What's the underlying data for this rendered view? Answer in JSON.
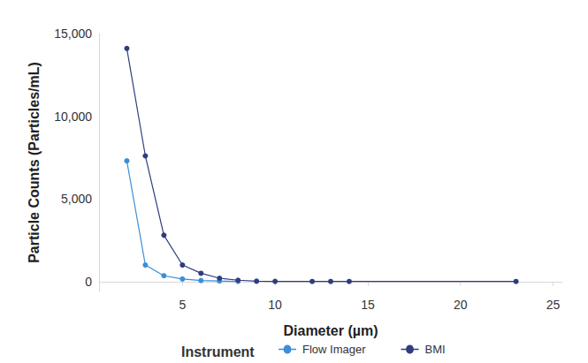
{
  "chart_data": {
    "type": "line",
    "x_label": "Diameter (µm)",
    "y_label": "Particle Counts (Particles/mL)",
    "legend_title": "Instrument",
    "legend": "bottom",
    "grid": false,
    "marker": "circle",
    "xlim": [
      0.5,
      25.5
    ],
    "xticks": [
      5,
      10,
      15,
      20,
      25
    ],
    "ylim": [
      -600,
      15000
    ],
    "yticks": [
      0,
      {
        "value": 5000,
        "label": "5,000"
      },
      {
        "value": 10000,
        "label": "10,000"
      },
      {
        "value": 15000,
        "label": "15,000"
      }
    ],
    "series": [
      {
        "name": "Flow Imager",
        "color": "#3a8fd8",
        "x": [
          2,
          3,
          4,
          5,
          6,
          7,
          8
        ],
        "values": [
          7300,
          1000,
          350,
          150,
          60,
          30,
          10
        ]
      },
      {
        "name": "BMI",
        "color": "#2f3d7e",
        "x": [
          2,
          3,
          4,
          5,
          6,
          7,
          8,
          9,
          10,
          12,
          13,
          14,
          23
        ],
        "values": [
          14100,
          7600,
          2800,
          1000,
          500,
          200,
          80,
          20,
          10,
          5,
          5,
          5,
          5
        ]
      }
    ]
  }
}
